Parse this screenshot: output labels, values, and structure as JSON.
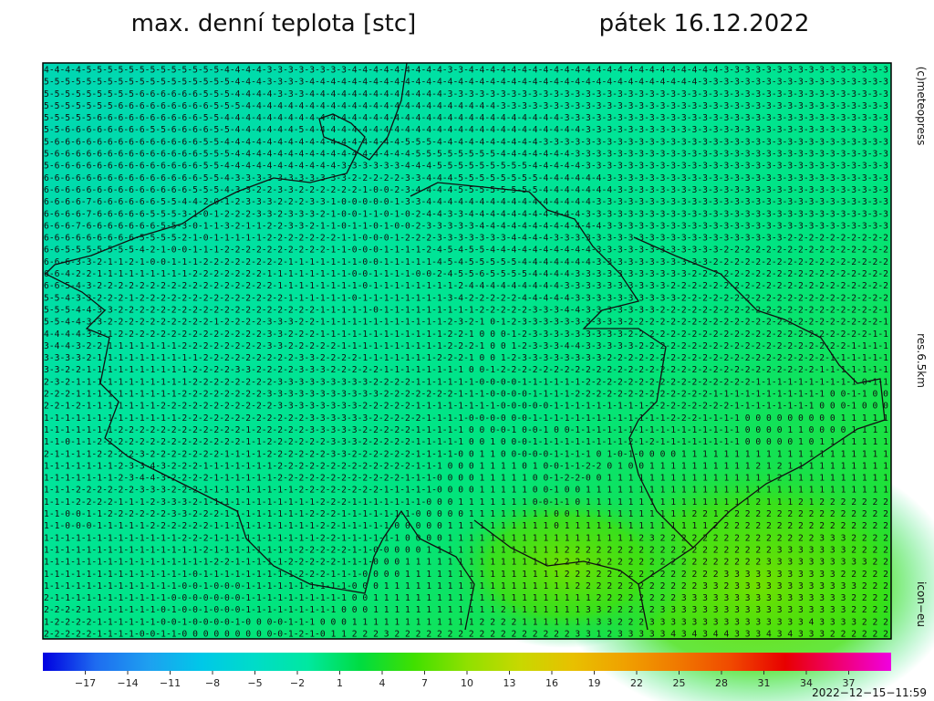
{
  "header": {
    "title": "max. denní teplota [stc]",
    "date": "pátek 16.12.2022"
  },
  "side_labels": {
    "credit": "(c)meteopress",
    "resolution": "res.6.5km",
    "model": "icon−eu"
  },
  "timestamp": "2022−12−15−11:59",
  "grid": {
    "rows": [
      "4-4-4-4-5-5-5-5-5-5-5-5-5-5-5-5-5-4-4-4-4-3-3-3-3-3-3-3-3-4-4-4-4-4-4-4-4-4-3-3-4-4-4-4-4-4-4-4-4-4-4-4-4-4-4-4-4-4-4-4-4-4-4-4-3-3-3-3-3-3-3-3-3-3-3-3-3-3-3-3",
      "5-5-5-5-5-5-5-5-5-5-5-5-5-5-5-5-5-5-4-4-4-3-3-3-3-4-4-4-4-4-4-4-4-4-4-4-4-4-4-4-4-4-4-4-4-4-4-4-4-4-4-4-4-4-4-4-4-4-4-4-4-4-3-3-3-3-3-3-3-3-3-3-3-3-3-3-3-3-3-3",
      "5-5-5-5-5-5-5-5-5-6-6-6-6-6-6-5-5-5-4-4-4-4-3-3-3-4-4-4-4-4-4-4-4-4-4-4-4-4-3-3-3-3-3-3-3-3-3-3-3-3-3-3-3-3-3-3-3-3-3-3-3-3-3-3-3-3-3-3-3-3-3-3-3-3-3-3-3-3-3-3",
      "5-5-5-5-5-5-5-6-6-6-6-6-6-6-6-6-5-5-5-4-4-4-4-4-4-4-4-4-4-4-4-4-4-4-4-4-4-4-4-4-4-4-4-3-3-3-3-3-3-3-3-3-3-3-3-3-3-3-3-3-3-3-3-3-3-3-3-3-3-3-3-3-3-3-3-3-3-3-3-3",
      "5-5-5-5-5-6-6-6-6-6-6-6-6-6-6-5-5-4-4-4-4-4-4-4-4-4-4-4-4-4-4-4-4-4-4-4-4-4-4-4-4-4-4-4-4-4-4-4-4-3-3-3-3-3-3-3-3-3-3-3-3-3-3-3-3-3-3-3-3-3-3-3-3-3-3-3-3-3-3-3",
      "5-5-6-6-6-6-6-6-6-6-5-5-6-6-6-6-5-5-4-4-4-4-4-4-5-4-4-4-4-4-4-4-4-4-4-4-4-4-4-4-4-4-4-4-4-4-4-4-4-4-4-3-3-3-3-3-3-3-3-3-3-3-3-3-3-3-3-3-3-3-3-3-3-3-3-3-3-3-3-3",
      "5-6-6-6-6-6-6-6-6-6-6-6-6-6-6-5-5-4-4-4-4-4-4-4-4-4-4-4-4-4-4-4-4-4-5-5-5-4-4-4-4-4-4-4-4-4-4-3-3-3-3-3-3-3-3-3-3-3-3-3-3-3-3-3-3-3-3-3-3-3-3-3-3-3-3-3-3-3-3-3",
      "5-6-6-6-6-6-6-6-6-6-6-6-6-6-6-5-5-5-4-4-4-4-4-4-4-4-4-4-4-4-4-4-4-4-4-5-5-5-5-5-5-5-5-4-4-4-4-4-4-4-3-3-3-3-3-3-3-3-3-3-3-3-3-3-3-3-3-3-3-3-3-3-3-3-3-3-3-3-3-3",
      "5-6-6-6-6-6-6-6-6-6-6-6-6-6-6-5-5-4-4-4-4-4-4-4-4-4-4-4-3-3-3-3-3-3-4-4-4-5-5-5-5-5-5-5-5-5-4-4-4-4-4-3-3-3-3-3-3-3-3-3-3-3-3-3-3-3-3-3-3-3-3-3-3-3-3-3-3-3-3-3",
      "6-6-6-6-6-6-6-6-6-6-6-6-6-6-6-5-5-4-3-3-3-3-3-3-3-3-3-3-3-2-2-2-2-2-3-3-4-4-4-5-5-5-5-5-5-5-5-4-4-4-4-4-4-3-3-3-3-3-3-3-3-3-3-3-3-3-3-3-3-3-3-3-3-3-3-3-3-3-3-3",
      "6-6-6-6-6-6-6-6-6-6-6-6-6-6-5-5-5-4-3-3-2-2-3-3-2-2-2-2-2-2-1-0-0-2-3-4-4-4-4-5-5-5-5-5-5-5-5-4-4-4-4-4-4-4-3-3-3-3-3-3-3-3-3-3-3-3-3-3-3-3-3-3-3-3-3-3-3-3-3-3",
      "6-6-6-6-7-6-6-6-6-6-6-5-5-4-4-2-0-1-2-3-3-3-2-2-2-3-3-1-0-0-0-0-0-1-3-3-4-4-4-4-4-4-4-4-4-4-4-4-4-4-4-4-3-3-3-3-3-3-3-3-3-3-3-3-3-3-3-3-3-3-3-3-3-3-3-3-3-3-3-3",
      "6-6-6-6-7-6-6-6-6-6-5-5-5-3-1-0-1-2-2-2-3-3-2-3-3-3-2-1-0-0-1-1-0-1-0-2-4-4-3-3-4-4-4-4-4-4-4-4-4-4-4-3-3-3-3-3-3-3-3-3-3-3-3-3-3-3-3-3-3-3-3-3-3-3-3-3-3-3-3-3",
      "6-6-6-7-6-6-6-6-6-6-6-5-5-3-0-1-1-3-2-1-1-2-2-3-3-2-1-1-0-1-1-0-1-0-0-2-3-3-3-3-3-4-4-4-4-4-4-4-4-4-4-4-4-3-3-3-3-3-3-3-3-3-3-3-3-3-3-3-3-3-3-3-3-3-3-3-3-3-3-3",
      "6-6-6-6-6-6-6-6-6-5-5-5-5-2-1-0-1-1-1-1-1-2-2-2-2-2-2-2-1-1-0-0-0-1-2-2-2-3-3-3-3-3-3-3-4-4-4-4-3-3-3-3-3-3-3-3-3-3-3-3-3-3-3-3-3-3-3-3-3-3-2-2-2-2-2-2-2-2-2-2",
      "6-6-5-5-5-5-5-5-5-4-2-1-0-0-1-1-1-2-2-2-2-2-2-2-2-2-2-1-1-0-0-0-1-1-1-1-2-4-5-4-5-5-4-4-4-4-4-4-4-4-4-4-3-3-3-3-3-3-3-3-3-3-3-3-2-2-2-2-2-2-2-2-2-2-2-2-2-2-2-2",
      "6-6-6-3-3-2-1-1-2-1-0-0-1-1-1-2-2-2-2-2-2-2-2-1-1-1-1-1-1-1-0-0-1-1-1-1-1-4-5-4-5-5-5-5-5-4-4-4-4-4-4-4-3-3-3-3-3-3-3-3-3-3-3-2-2-2-2-2-2-2-2-2-2-2-2-2-2-2-2-2",
      "6-6-4-2-2-1-1-1-1-1-1-1-1-1-2-2-2-2-2-2-2-1-1-1-1-1-1-1-1-0-0-1-1-1-1-0-0-2-4-5-5-6-5-5-5-5-4-4-4-4-3-3-3-3-3-3-3-3-3-3-3-2-2-2-2-2-2-2-2-2-2-2-2-2-2-2-2-2-2-2",
      "6-6-5-4-3-2-2-2-2-2-2-2-2-2-2-2-2-2-2-2-2-2-1-1-1-1-1-1-1-1-0-1-1-1-1-1-1-1-1-2-4-4-4-4-4-4-4-4-4-3-3-3-3-3-3-3-3-3-3-2-2-2-2-2-2-2-2-2-2-2-2-2-2-2-2-2-2-2-2-2",
      "5-5-4-3-3-2-2-2-1-2-2-2-2-2-2-2-2-2-2-2-2-2-2-1-1-1-1-1-1-0-1-1-1-1-1-1-1-1-3-4-2-2-2-2-2-4-4-4-4-4-3-3-3-3-3-3-3-3-3-3-2-2-2-2-2-2-2-2-2-2-2-2-2-2-2-2-2-2-2-2",
      "5-5-5-4-4-3-3-2-2-2-2-2-2-2-2-2-2-2-2-2-2-2-2-2-2-2-1-1-1-1-1-0-1-1-1-1-1-1-1-1-1-2-2-2-2-2-3-3-3-4-4-3-3-3-3-3-3-3-2-2-2-2-2-2-2-2-2-2-2-2-2-2-2-2-2-2-2-2-2-1",
      "5-5-4-4-3-3-2-2-2-2-2-2-2-2-2-2-1-2-2-2-2-3-3-3-2-2-1-1-1-1-1-1-1-1-1-1-1-1-2-3-2-1 0-1-2-3-3-3-3-3-3-3-3-3-3-2-2-2-2-2-2-2-2-2-2-2-2-2-2-2-2-2-2-2-2-2-2-2-2-1",
      "4-4-4-4-3-2-1-2-2-2-2-2-2-2-2-2-2-2-2-2-2-3-3-2-2-2-1-1-1-1-1-1-1-1-1-1-1-1-2-2-1 0 0 0-1-2-3-3-3-3-3-3-3-3-3-2-2-2-2-2-2-2-2-2-2-2-2-2-2-2-2-2-2-2-2-2-2-2-1-1",
      "3-4-4-3-2-2-1-1-1-1-1-1-1-2-2-2-2-2-2-2-2-3-3-2-2-2-2-2-1-1-1-1-1-1-1-1-1-1-2-2-2-1 0 0 1-2-3-3-3-4-4-3-3-3-3-3-2-2-2-2-2-2-2-2-2-2-2-2-2-2-2-2-2-2-2-2-1-1-1-1",
      "3-3-3-3-2-1-1-1-1-1-1-1-1-1-1-2-2-2-2-2-2-2-2-2-3-3-2-2-2-2-1-1-1-1-1-1-1-2-2-2-1 0 0 1-2-3-3-3-3-3-3-3-3-2-2-2-2-2-2-2-2-2-2-2-2-2-2-2-2-2-2-2-2-2-1-1-1-1-1-1",
      "3-3-2-2-1-1-1-1-1-1-1-1-1-1-2-2-2-2-3-3-2-2-2-2-3-3-3-2-2-2-2-2-1-1-1-1-1-1-1-1 0 0-1-2-2-2-2-2-2-2-2-2-2-2-2-2-2-2-2-2-2-2-2-2-2-2-2-2-2-2-2-2-2-1-1-1-1-1-1-1",
      "2-3-2-1-1-1-1-1-1-1-1-1-1-1-2-2-2-2-2-2-2-2-3-3-3-3-3-3-3-3-3-2-2-2-2-1-1-1-1-1-1-0-0-0-0-1-1-1-1-1-1-2-2-2-2-2-2-2-2-2-2-2-2-2-2-2-2-1-1-1-1-1-1-1-1-1-1 0-1-1",
      "2-2-2-1-1-1-1-1-1-1-1-1-1-2-2-2-2-2-2-2-2-3-3-3-3-3-3-3-3-3-3-3-2-2-2-2-2-2-2-1-1-1-0-0-0-0-1-1-1-1-2-2-2-2-2-2-2-2-2-2-2-2-2-1-1-1-1-1-1-1-1-1-1-1 0 0-1-1 0 0",
      "2-2-1-2-1-1-1-1-1-1-1-2-2-2-2-2-2-2-2-2-2-2-3-3-3-3-3-3-3-3-2-2-2-2-2-1-1-1-1-1-1-1-1-0-0-0-0-0-1-1-1-1-1-1-1-1-1-2-2-2-2-2-2-2-2-1-1-1-1-1-1-1-1 0 0 0-1 0 0 0",
      "1-1-1-1-1-1-1-1-1-1-1-1-1-2-2-2-2-2-2-2-2-2-2-2-2-3-3-3-3-3-3-2-2-2-2-2-1-1-1-1-0-0-0-0 0-0-1-1-1-1-1-1-1-1-1-1-1-1-1-2-2-2-1-1-1-1 0 0 0 0 0 0 0 0 0 1 1 1 1 1",
      "1-1-1-1-1-1-1-2-2-2-2-2-2-2-2-2-2-2-2-1-2-2-2-2-2-3-3-3-3-3-2-2-2-2-2-1-1-1-1-1 0 0 0-0-1 0-0-1 0 0-1-1-1-1-1-1-1-1-1-1-1-1-1-1-1-1 0 0 0 0 1 1 0 0 0 0 1 1 1 1",
      "1-1-0-1-1-2-2-2-2-2-2-2-2-2-2-2-2-2-2-1-1-2-2-2-2-2-2-3-3-3-2-2-2-2-2-1-1-1-1-1 0 0 1 0 0-0-1-1-1-1-1-1-1-1-1-2-1-2-1-1-1-1-1-1-1-1 0 0 0 0 0 1 0 1 1 1 1 1 1 1",
      "2-1-1-1-1-2-2-2-2-3-2-2-2-2-2-2-2-1-1-1-1-2-2-2-2-2-2-3-3-2-2-2-2-2-2-1-1-1-1-0 0 1 1 0 0-0-0-0-1-1-1-1 0 1-0-1-0 0 0 0 1 1 1 1 1 1 1 1 1 1 1 1 1 1 1 1 1 1 1 1",
      "1-1-1-1-1-1-1-2-3-3-4-3-2-2-2-1-1-1-1-1-1-1-2-2-2-2-2-2-2-2-2-2-2-2-2-1-1-1 0 0 0 1 1 1 1 0 1 0-0-1-1-2-2 0 1 0 0 1 1 1 1 1 1 1 1 1 1 2 1 2 1 1 1 1 1 1 1 1 1 1",
      "1-1-1-1-1-1-1-2-3-4-4-3-2-2-2-2-1-1-1-1-1-1-2-2-2-2-2-2-2-2-2-2-2-2-1-1-1-0 0 0 0 1 1 1 1 1 0 0-1-2-2-0 0 1 1 1 1 1 1 1 1 1 1 1 1 1 1 1 1 2 1 1 1 1 1 1 1 1 1 1",
      "1-1-1-2-2-2-2-2-2-3-3-3-2-2-2-1-1-1-1-1-1-1-1-1-2-2-2-2-2-2-2-2-1-1-1-1-1-0 0 0 0 1 1 1 1 1 0 0-1 0 0 1 1 1 1 1 1 1 1 1 1 1 1 1 1 1 1 1 1 1 1 1 1 1 1 1 1 1 1 1",
      "1-1-1-2-2-2-2-1-1-1-2-3-3-3-2-1-1-1-1-1-1-1-1-1-1-1-2-2-2-1-1-1-1-1-1-1-0 0 0 1 1 1 1 1 1 1 0-0-1-1 0 1 1 1 1 1 1 1 1 1 1 1 1 1 1 1 1 2 1 1 1 2 1 2 2 2 2 2 2 2",
      "1-1-0-0-1-1-2-2-2-2-2-2-3-3-2-2-2-1-1-1-1-1-1-1-1-2-2-2-1-1-1-1-1-1-1-0 0 0 0 0 1 1 1 1 1 1 1 1 0 0 1 1 1 1 1 1 1 1 1 1 1 2 2 1 2 2 2 2 2 2 2 2 2 2 2 2 2 2 2 2",
      "1-1-0-0-0-1-1-1-1-1-2-2-2-2-2-2-1-1-1-1-1-1-1-1-1-1-2-2-1-1-1-1-1-0 0 0 0 0 1 1 1 1 1 1 1 1 1 1 0 1 1 1 1 1 1 1 1 1 1 1 1 1 1 2 2 2 2 2 2 2 2 2 2 2 2 2 2 2 2 2",
      "1-1-1-1-1-1-1-1-1-1-1-1-1-2-2-2-1-1-1-1-1-1-1-1-1-1-2-2-1-1-1-1-1-1 0 0 0 0 1 1 1 1 1 1 1 1 1 1 1 1 1 1 1 1 1 1 2 3 2 2 2 2 2 2 2 2 2 2 2 2 2 2 2 3 3 3 2 2 2 2",
      "1-1-1-1-1-1-1-1-1-1-1-1-1-1-1-2-1-1-1-1-1-1-1-1-2-2-2-2-2-1-1-0-0 0 0 0 1 1 1 1 1 1 1 1 1 1 1 1 1 2 2 2 2 2 2 2 2 2 2 2 2 2 2 2 2 2 2 2 2 3 3 3 3 3 3 3 2 2 2 2",
      "1-1-1-1-1-1-1-1-1-1-1-1-1-1-1-1-2-2-1-1-1-1-1-2-2-2-2-2-1-1-1-0 0 0 1 1 1 1 1 1 1 1 1 1 1 1 1 1 2 2 2 2 2 2 2 2 2 2 2 2 2 2 2 2 2 2 2 2 3 3 3 3 3 3 3 3 3 3 2 2",
      "1-1-1-1-1-1-1-1-1-1-1-1-1-1-0-1-1-1-1-1-1-1-1-1-2-2-2-1-1-1-0 0 0 0 1 1 1 1 1 1 1 1 1 1 1 1 1 1 1 2 2 2 2 2 2 2 2 2 2 2 2 2 2 2 3 3 3 3 3 3 3 3 3 3 3 2 2 2 2 2",
      "1-1-1-1-1-1-1-1-1-1-1-1-1-0-0-1-0-0-0-1-1-1-1-1-1-1-1-1-1-0 0 0 1 1 1 1 1 1 1 1 1 1 1 1 1 1 1 1 1 1 2 2 2 2 2 2 2 2 2 2 2 2 3 3 2 3 3 3 3 3 3 3 3 3 3 3 3 2 2 2",
      "2-1-1-1-1-1-1-1-1-1-1-1-0-0-0-0-0-0-0-1-1-1-1-1-1-1-1-1-1 0 0 1 1 1 1 1 1 1 1 1 1 1 1 1 1 1 1 1 1 1 1 1 2 2 2 2 2 2 2 2 3 3 3 3 3 3 3 3 3 3 3 3 3 3 3 3 2 2 2 2",
      "2-2-2-2-1-1-1-1-1-1-1-0-1-0-0-1-0-0-0-1-1-1-1-1-1-1-1-1 0 0 0 1 1 1 1 1 1 1 1 1 1 1 1 2 1 1 1 1 1 1 1 3 3 2 2 2 2 2 3 3 3 3 3 3 3 3 3 3 3 3 3 3 3 3 3 3 2 2 2 2",
      "1-2-2-2-2-1-1-1-1-1-1-0-0-1-0-0-0-0-1-0 0 0-0-1-1-1 0 0 0 1 1 1 1 1 1 1 1 1 1 1 1 2 2 2 2 1 1 1 1 1 1 1 3 3 2 2 2 3 3 3 3 3 3 3 3 3 3 3 3 3 3 3 4 3 3 3 3 2 2 2",
      "2-2-2-2-2-1-1-1-1-0-0-1-1-0 0 0 0 0 0 0 0 0-0-1-2-1-0 1 1 2 2 2 3 2 2 2 2 2 2 2 2 2 2 2 2 2 2 2 2 2 3 3 1 2 3 3 3 3 3 4 3 4 3 4 4 3 3 3 4 3 4 3 3 3 2 2 2 2 2 2"
    ]
  },
  "colorbar": {
    "lim": [
      -20,
      40
    ],
    "colors": [
      "#0000e0",
      "#1e6cf0",
      "#1ea0f0",
      "#00c8e8",
      "#00dcc8",
      "#00e8a0",
      "#00dc40",
      "#40e000",
      "#90e000",
      "#c8d800",
      "#e8c000",
      "#f0a000",
      "#f07800",
      "#f04800",
      "#e80000",
      "#f00070",
      "#f000e0"
    ],
    "ticks": [
      {
        "value": -17,
        "label": "−17"
      },
      {
        "value": -14,
        "label": "−14"
      },
      {
        "value": -11,
        "label": "−11"
      },
      {
        "value": -8,
        "label": "−8"
      },
      {
        "value": -5,
        "label": "−5"
      },
      {
        "value": -2,
        "label": "−2"
      },
      1,
      4,
      7,
      10,
      13,
      16,
      19,
      22,
      25,
      28,
      31,
      34,
      37
    ]
  }
}
